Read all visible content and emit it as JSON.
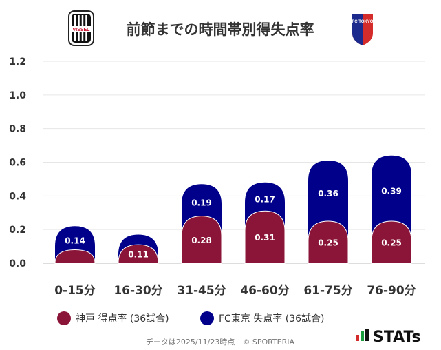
{
  "chart_data": {
    "type": "bar",
    "title": "前節までの時間帯別得失点率",
    "categories": [
      "0-15分",
      "16-30分",
      "31-45分",
      "46-60分",
      "61-75分",
      "76-90分"
    ],
    "series": [
      {
        "name": "神戸 得点率 (36試合)",
        "color": "#8b1538",
        "values": [
          0.08,
          0.11,
          0.28,
          0.31,
          0.25,
          0.25
        ],
        "labels": [
          "",
          "0.11",
          "0.28",
          "0.31",
          "0.25",
          "0.25"
        ]
      },
      {
        "name": "FC東京 失点率 (36試合)",
        "color": "#00008b",
        "values": [
          0.14,
          0.06,
          0.19,
          0.17,
          0.36,
          0.39
        ],
        "labels": [
          "0.14",
          "",
          "0.19",
          "0.17",
          "0.36",
          "0.39"
        ]
      }
    ],
    "yticks": [
      "0.0",
      "0.2",
      "0.4",
      "0.6",
      "0.8",
      "1.0",
      "1.2"
    ],
    "ylim": [
      0,
      1.2
    ],
    "xlabel": "",
    "ylabel": "",
    "legend_position": "bottom-left"
  },
  "logos": {
    "left": {
      "name": "vissel-kobe-logo",
      "text": "VISSEL"
    },
    "right": {
      "name": "fc-tokyo-logo",
      "text": "FC TOKYO"
    }
  },
  "footer": {
    "note": "データは2025/11/23時点　© SPORTERIA",
    "brand": "STATs"
  }
}
